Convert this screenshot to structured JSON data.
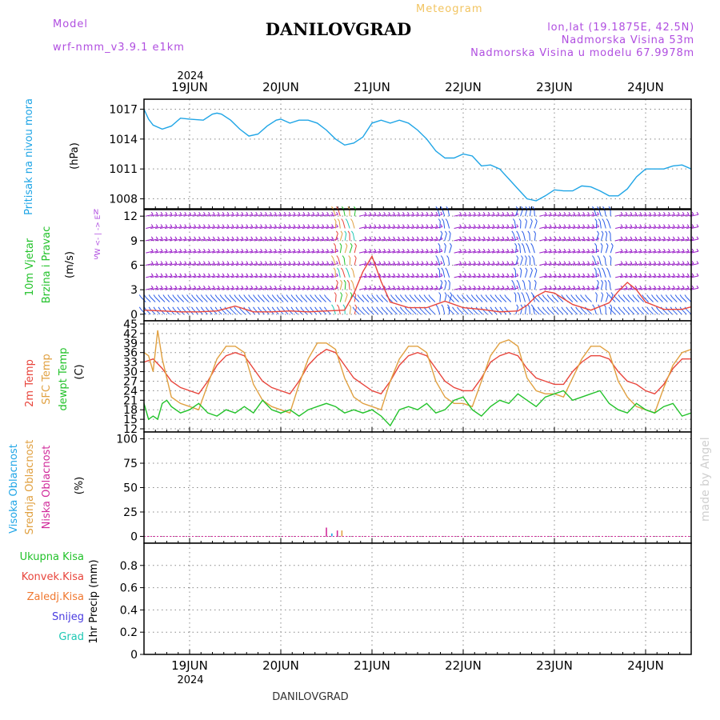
{
  "header": {
    "meteogram": "Meteogram",
    "title": "DANILOVGRAD",
    "model_label": "Model",
    "model_name": "wrf-nmm_v3.9.1  e1km",
    "lonlat": "lon,lat (19.1875E, 42.5N)",
    "elevation": "Nadmorska Visina 53m",
    "model_elevation": "Nadmorska Visina u modelu 67.9978m"
  },
  "footer": {
    "station": "DANILOVGRAD"
  },
  "watermark": "made by Angel",
  "colors": {
    "pressure": "#1fa5e6",
    "temp_2m": "#e8453c",
    "temp_sfc": "#e0a040",
    "dewpoint": "#22c22a",
    "wind_barbs": "#9a1ec8",
    "wind_strong": "#2a5ce8",
    "panel_frame": "#000000",
    "model_text": "#b04ee0",
    "meteogram_text": "#f2c460"
  },
  "time_axis": {
    "days": [
      "19JUN",
      "20JUN",
      "21JUN",
      "22JUN",
      "23JUN",
      "24JUN"
    ],
    "year": "2024",
    "start_day_offset": -0.5,
    "end_day_offset": 5.5
  },
  "chart_data": [
    {
      "type": "line",
      "id": "pressure",
      "side_label": "Pritisak na nivou mora",
      "unit": "(hPa)",
      "ylim": [
        1007,
        1018
      ],
      "yticks": [
        1008,
        1011,
        1014,
        1017
      ],
      "grid": true,
      "series": [
        {
          "color": "#1fa5e6",
          "x": [
            -0.5,
            -0.45,
            -0.4,
            -0.3,
            -0.2,
            -0.1,
            0,
            0.15,
            0.25,
            0.3,
            0.35,
            0.45,
            0.55,
            0.65,
            0.75,
            0.85,
            0.95,
            1.0,
            1.1,
            1.2,
            1.3,
            1.4,
            1.5,
            1.6,
            1.7,
            1.8,
            1.9,
            2.0,
            2.1,
            2.2,
            2.3,
            2.4,
            2.5,
            2.6,
            2.7,
            2.8,
            2.9,
            3.0,
            3.1,
            3.2,
            3.3,
            3.4,
            3.5,
            3.6,
            3.7,
            3.8,
            3.9,
            4.0,
            4.1,
            4.2,
            4.3,
            4.4,
            4.5,
            4.6,
            4.7,
            4.8,
            4.9,
            5.0,
            5.1,
            5.2,
            5.3,
            5.4,
            5.5
          ],
          "values": [
            1017.0,
            1016.0,
            1015.4,
            1015.0,
            1015.3,
            1016.1,
            1016.0,
            1015.9,
            1016.5,
            1016.6,
            1016.5,
            1015.9,
            1015.0,
            1014.3,
            1014.5,
            1015.3,
            1015.9,
            1016.0,
            1015.6,
            1015.9,
            1015.9,
            1015.6,
            1014.9,
            1014.0,
            1013.4,
            1013.6,
            1014.2,
            1015.6,
            1015.9,
            1015.6,
            1015.9,
            1015.6,
            1014.9,
            1014.0,
            1012.8,
            1012.1,
            1012.1,
            1012.5,
            1012.3,
            1011.3,
            1011.4,
            1011.0,
            1010.0,
            1009.0,
            1008.0,
            1007.8,
            1008.3,
            1008.9,
            1008.8,
            1008.8,
            1009.3,
            1009.2,
            1008.8,
            1008.3,
            1008.3,
            1009.0,
            1010.2,
            1011.0,
            1011.0,
            1011.0,
            1011.3,
            1011.4,
            1011.0
          ]
        }
      ]
    },
    {
      "type": "line",
      "id": "wind",
      "side_label_1": "10m Vjetar",
      "side_label_2": "Brzina i Pravac",
      "unit": "(m/s)",
      "compass": "W <- | -> E",
      "compass_n": "N",
      "compass_s": "S",
      "ylim": [
        -0.8,
        12.8
      ],
      "yticks": [
        0,
        3,
        6,
        9,
        12
      ],
      "grid": true,
      "series": [
        {
          "name": "wind speed",
          "color": "#e8453c",
          "x": [
            -0.5,
            -0.3,
            -0.1,
            0.1,
            0.3,
            0.5,
            0.7,
            0.9,
            1.1,
            1.3,
            1.5,
            1.7,
            1.8,
            1.9,
            2.0,
            2.1,
            2.2,
            2.4,
            2.6,
            2.8,
            3.0,
            3.2,
            3.4,
            3.6,
            3.7,
            3.8,
            3.9,
            4.0,
            4.2,
            4.4,
            4.6,
            4.7,
            4.8,
            4.9,
            5.0,
            5.2,
            5.4,
            5.5
          ],
          "values": [
            0.5,
            0.4,
            0.3,
            0.3,
            0.4,
            1.0,
            0.3,
            0.3,
            0.4,
            0.3,
            0.4,
            0.5,
            2.5,
            5.2,
            7.1,
            4.0,
            1.5,
            0.8,
            0.8,
            1.6,
            0.8,
            0.6,
            0.3,
            0.4,
            1.1,
            2.2,
            2.8,
            2.6,
            1.2,
            0.5,
            1.4,
            2.8,
            3.9,
            3.0,
            1.5,
            0.6,
            0.6,
            0.9
          ]
        }
      ]
    },
    {
      "type": "line",
      "id": "temperature",
      "side_label_1": "2m Temp",
      "side_label_2": "SFC Temp",
      "side_label_3": "dewpt Temp",
      "unit": "(C)",
      "ylim": [
        11,
        46
      ],
      "yticks": [
        12,
        15,
        18,
        21,
        24,
        27,
        30,
        33,
        36,
        39,
        42,
        45
      ],
      "grid": true,
      "series": [
        {
          "name": "2m Temp",
          "color": "#e8453c",
          "x": [
            -0.5,
            -0.4,
            -0.3,
            -0.2,
            -0.1,
            0.0,
            0.1,
            0.2,
            0.3,
            0.4,
            0.5,
            0.6,
            0.7,
            0.8,
            0.9,
            1.0,
            1.1,
            1.2,
            1.3,
            1.4,
            1.5,
            1.6,
            1.7,
            1.8,
            1.9,
            2.0,
            2.1,
            2.2,
            2.3,
            2.4,
            2.5,
            2.6,
            2.7,
            2.8,
            2.9,
            3.0,
            3.1,
            3.2,
            3.3,
            3.4,
            3.5,
            3.6,
            3.7,
            3.8,
            3.9,
            4.0,
            4.1,
            4.2,
            4.3,
            4.4,
            4.5,
            4.6,
            4.7,
            4.8,
            4.9,
            5.0,
            5.1,
            5.2,
            5.3,
            5.4,
            5.5
          ],
          "values": [
            33,
            34,
            31,
            27,
            25,
            24,
            23,
            27,
            32,
            35,
            36,
            35,
            31,
            27,
            25,
            24,
            23,
            27,
            32,
            35,
            37,
            36,
            32,
            28,
            26,
            24,
            23,
            27,
            32,
            35,
            36,
            35,
            31,
            27,
            25,
            24,
            24,
            28,
            33,
            35,
            36,
            35,
            31,
            28,
            27,
            26,
            26,
            30,
            33,
            35,
            35,
            34,
            30,
            27,
            26,
            24,
            23,
            26,
            31,
            34,
            34
          ]
        },
        {
          "name": "SFC Temp",
          "color": "#e0a040",
          "x": [
            -0.5,
            -0.45,
            -0.4,
            -0.35,
            -0.3,
            -0.2,
            -0.1,
            0.0,
            0.1,
            0.2,
            0.3,
            0.4,
            0.5,
            0.6,
            0.7,
            0.8,
            0.9,
            1.0,
            1.1,
            1.2,
            1.3,
            1.4,
            1.5,
            1.6,
            1.7,
            1.8,
            1.9,
            2.0,
            2.1,
            2.2,
            2.3,
            2.4,
            2.5,
            2.6,
            2.7,
            2.8,
            2.9,
            3.0,
            3.1,
            3.2,
            3.3,
            3.4,
            3.5,
            3.6,
            3.7,
            3.8,
            3.9,
            4.0,
            4.1,
            4.2,
            4.3,
            4.4,
            4.5,
            4.6,
            4.7,
            4.8,
            4.9,
            5.0,
            5.1,
            5.2,
            5.3,
            5.4,
            5.5
          ],
          "values": [
            36,
            35,
            30,
            43,
            34,
            22,
            20,
            19,
            18,
            26,
            34,
            38,
            38,
            36,
            26,
            21,
            19,
            18,
            17,
            26,
            34,
            39,
            39,
            37,
            28,
            22,
            20,
            19,
            18,
            27,
            34,
            38,
            38,
            36,
            27,
            22,
            20,
            20,
            19,
            27,
            35,
            39,
            40,
            38,
            28,
            24,
            23,
            23,
            22,
            28,
            34,
            38,
            38,
            36,
            27,
            22,
            19,
            18,
            17,
            25,
            32,
            36,
            37
          ]
        },
        {
          "name": "dewpt Temp",
          "color": "#22c22a",
          "x": [
            -0.5,
            -0.45,
            -0.4,
            -0.35,
            -0.3,
            -0.25,
            -0.2,
            -0.1,
            0.0,
            0.1,
            0.2,
            0.3,
            0.4,
            0.5,
            0.6,
            0.7,
            0.8,
            0.9,
            1.0,
            1.1,
            1.2,
            1.3,
            1.4,
            1.5,
            1.6,
            1.7,
            1.8,
            1.9,
            2.0,
            2.1,
            2.2,
            2.3,
            2.4,
            2.5,
            2.6,
            2.7,
            2.8,
            2.9,
            3.0,
            3.1,
            3.2,
            3.3,
            3.4,
            3.5,
            3.6,
            3.7,
            3.8,
            3.9,
            4.0,
            4.1,
            4.2,
            4.3,
            4.4,
            4.5,
            4.6,
            4.7,
            4.8,
            4.9,
            5.0,
            5.1,
            5.2,
            5.3,
            5.4,
            5.5
          ],
          "values": [
            20,
            15,
            16,
            15,
            20,
            21,
            19,
            17,
            18,
            20,
            17,
            16,
            18,
            17,
            19,
            17,
            21,
            18,
            17,
            18,
            16,
            18,
            19,
            20,
            19,
            17,
            18,
            17,
            18,
            16,
            13,
            18,
            19,
            18,
            20,
            17,
            18,
            21,
            22,
            18,
            16,
            19,
            21,
            20,
            23,
            21,
            19,
            22,
            23,
            24,
            21,
            22,
            23,
            24,
            20,
            18,
            17,
            20,
            18,
            17,
            19,
            20,
            16,
            17
          ]
        }
      ]
    },
    {
      "type": "bar",
      "id": "clouds",
      "side_label_1": "Visoka Oblacnost",
      "side_label_2": "Srednja Oblacnost",
      "side_label_3": "Niska Oblacnost",
      "unit": "(%)",
      "ylim": [
        -7,
        107
      ],
      "yticks": [
        0,
        25,
        50,
        75,
        100
      ],
      "grid": true,
      "series": [
        {
          "name": "Niska Oblacnost",
          "color": "#d02a9a",
          "x": [
            1.5,
            1.62
          ],
          "values": [
            3,
            2
          ]
        },
        {
          "name": "Srednja Oblacnost",
          "color": "#e0a040",
          "x": [
            1.67
          ],
          "values": [
            2
          ]
        },
        {
          "name": "Visoka Oblacnost",
          "color": "#1fa5e6",
          "x": [
            1.56
          ],
          "values": [
            1
          ]
        }
      ]
    },
    {
      "type": "bar",
      "id": "precip",
      "side_label": "1hr Precip (mm)",
      "legend": [
        "Ukupna Kisa",
        "Konvek.Kisa",
        "Zaledj.Kisa",
        "Snijeg",
        "Grad"
      ],
      "legend_colors": [
        "#22c22a",
        "#e8453c",
        "#f07830",
        "#4a3ce0",
        "#1ec8b4"
      ],
      "ylim": [
        0,
        1.0
      ],
      "yticks": [
        0,
        0.2,
        0.4,
        0.6,
        0.8
      ],
      "ytick_labels": [
        "0",
        "0.2",
        "0.4",
        "0.6",
        "0.8"
      ],
      "grid": true,
      "series": []
    }
  ]
}
